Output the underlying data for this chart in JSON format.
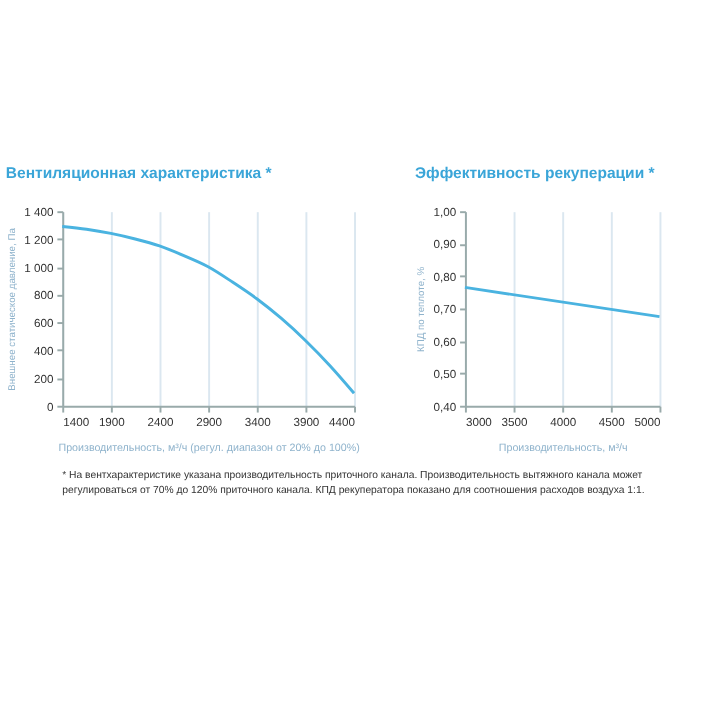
{
  "chart_data": [
    {
      "type": "line",
      "title": "Вентиляционная характеристика *",
      "xlabel": "Производительность, м³/ч (регул. диапазон от 20% до 100%)",
      "ylabel": "Внешнее статическое давление, Па",
      "x": [
        1400,
        1650,
        1900,
        2150,
        2400,
        2650,
        2900,
        3150,
        3400,
        3650,
        3900,
        4150,
        4400
      ],
      "series": [
        {
          "color": "#4ab3e0",
          "values": [
            1290,
            1270,
            1240,
            1200,
            1150,
            1080,
            1000,
            890,
            770,
            630,
            470,
            290,
            90
          ]
        }
      ],
      "xlim": [
        1400,
        4400
      ],
      "xticks": [
        1400,
        1900,
        2400,
        2900,
        3400,
        3900,
        4400
      ],
      "ylim": [
        0,
        1400
      ],
      "yticks": [
        {
          "value": 0,
          "label": "0"
        },
        {
          "value": 200,
          "label": "200"
        },
        {
          "value": 400,
          "label": "400"
        },
        {
          "value": 600,
          "label": "600"
        },
        {
          "value": 800,
          "label": "800"
        },
        {
          "value": 1000,
          "label": "1 000"
        },
        {
          "value": 1200,
          "label": "1 200"
        },
        {
          "value": 1400,
          "label": "1 400"
        }
      ],
      "grid": "x",
      "marker": "none",
      "line_style": "solid",
      "annotations": [
        "* На вентхарактеристике указана производительность приточного канала. Производительность вытяжного канала может регулироваться от 70% до 120% приточного канала. КПД рекуператора показано для соотношения расходов воздуха 1:1."
      ]
    },
    {
      "type": "line",
      "title": "Эффективность рекуперации *",
      "xlabel": "Производительность, м³/ч",
      "ylabel": "КПД по теплоте, %",
      "x": [
        3000,
        5000
      ],
      "series": [
        {
          "color": "#4ab3e0",
          "values": [
            0.765,
            0.675
          ]
        }
      ],
      "xlim": [
        3000,
        5000
      ],
      "xticks": [
        3000,
        3500,
        4000,
        4500,
        5000
      ],
      "ylim": [
        0.4,
        1.0
      ],
      "yticks": [
        {
          "value": 0.4,
          "label": "0,40"
        },
        {
          "value": 0.5,
          "label": "0,50"
        },
        {
          "value": 0.6,
          "label": "0,60"
        },
        {
          "value": 0.7,
          "label": "0,70"
        },
        {
          "value": 0.8,
          "label": "0,80"
        },
        {
          "value": 0.9,
          "label": "0,90"
        },
        {
          "value": 1.0,
          "label": "1,00"
        }
      ],
      "grid": "x",
      "marker": "none",
      "line_style": "solid"
    }
  ]
}
